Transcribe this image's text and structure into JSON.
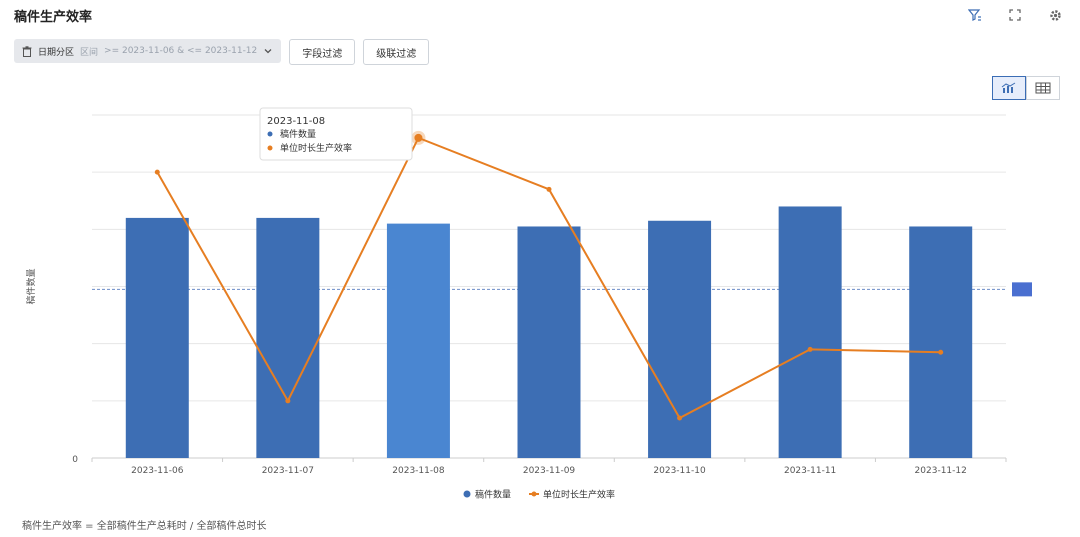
{
  "title": "稿件生产效率",
  "toolbar": {
    "date_filter_label": "日期分区",
    "date_filter_type": "区间",
    "date_filter_range": ">= 2023-11-06 & <= 2023-11-12",
    "field_filter_label": "字段过滤",
    "cascade_filter_label": "级联过滤"
  },
  "icons": {
    "filter": "filter-icon",
    "fullscreen": "fullscreen-icon",
    "settings": "gear-icon",
    "chart_view": "bar-line-chart-icon",
    "table_view": "table-icon"
  },
  "colors": {
    "bar": "#3d6eb4",
    "bar_highlight": "#4a86d1",
    "line": "#e67e22",
    "grid": "#e6e6e6"
  },
  "chart_data": {
    "type": "bar",
    "categories": [
      "2023-11-06",
      "2023-11-07",
      "2023-11-08",
      "2023-11-09",
      "2023-11-10",
      "2023-11-11",
      "2023-11-12"
    ],
    "series": [
      {
        "name": "稿件数量",
        "type": "bar",
        "axis": "left",
        "values": [
          4.2,
          4.2,
          4.1,
          4.05,
          4.15,
          4.4,
          4.05
        ]
      },
      {
        "name": "单位时长生产效率",
        "type": "line",
        "axis": "right",
        "values": [
          5.0,
          1.0,
          5.6,
          4.7,
          0.7,
          1.9,
          1.85
        ]
      }
    ],
    "ylabel": "稿件数量",
    "ylim": [
      0,
      6
    ],
    "y_ticks": [
      "0"
    ],
    "y2lim": [
      0,
      6
    ],
    "average_line": 2.95,
    "highlight_index": 2,
    "legend": [
      "稿件数量",
      "单位时长生产效率"
    ],
    "tooltip": {
      "date": "2023-11-08",
      "items": [
        "稿件数量",
        "单位时长生产效率"
      ]
    }
  },
  "footer_note": "稿件生产效率 = 全部稿件生产总耗时 / 全部稿件总时长"
}
